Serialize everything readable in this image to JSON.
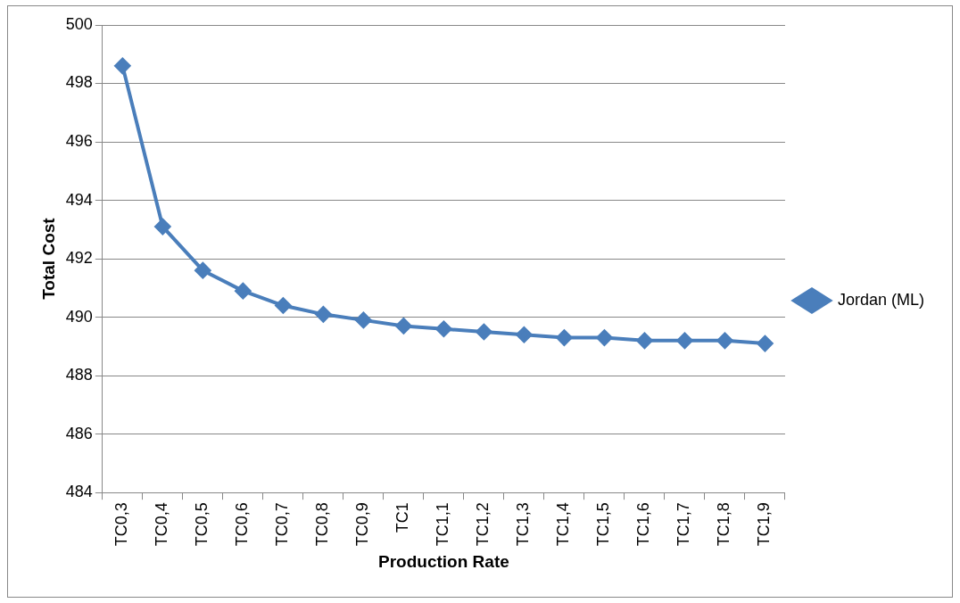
{
  "chart_data": {
    "type": "line",
    "xlabel": "Production Rate",
    "ylabel": "Total Cost",
    "categories": [
      "TC0,3",
      "TC0,4",
      "TC0,5",
      "TC0,6",
      "TC0,7",
      "TC0,8",
      "TC0,9",
      "TC1",
      "TC1,1",
      "TC1,2",
      "TC1,3",
      "TC1,4",
      "TC1,5",
      "TC1,6",
      "TC1,7",
      "TC1,8",
      "TC1,9"
    ],
    "series": [
      {
        "name": "Jordan (ML)",
        "color": "#4a7ebb",
        "values": [
          498.6,
          493.1,
          491.6,
          490.9,
          490.4,
          490.1,
          489.9,
          489.7,
          489.6,
          489.5,
          489.4,
          489.3,
          489.3,
          489.2,
          489.2,
          489.2,
          489.1
        ]
      }
    ],
    "ylim": [
      484,
      500
    ],
    "yticks": [
      484,
      486,
      488,
      490,
      492,
      494,
      496,
      498,
      500
    ],
    "grid": "y",
    "legend": "right",
    "marker": "diamond",
    "line_style": "solid"
  }
}
